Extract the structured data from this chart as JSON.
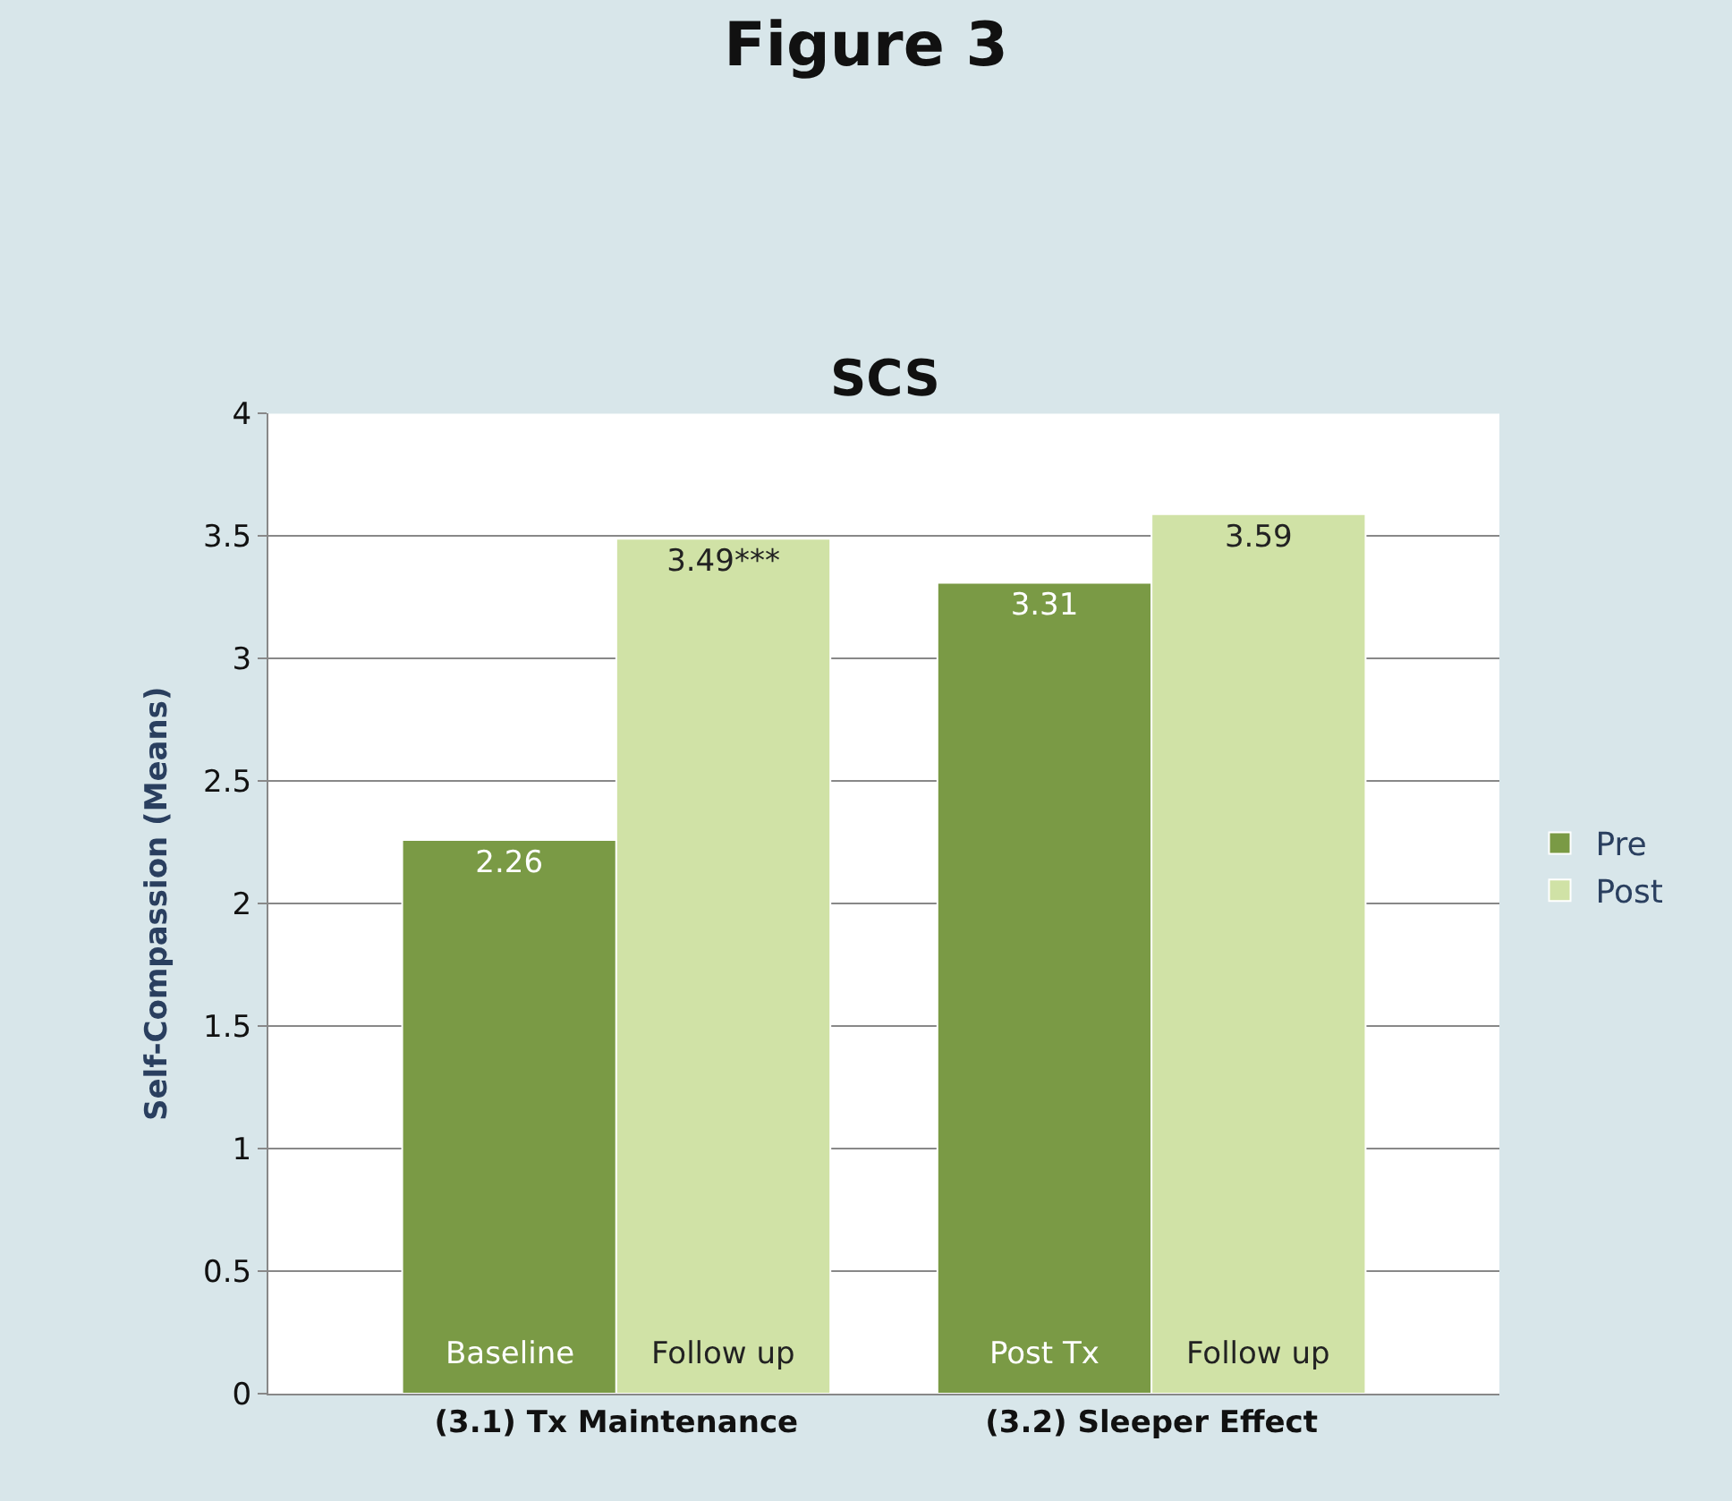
{
  "chart_data": {
    "type": "bar",
    "title": "Figure 3",
    "subtitle": "SCS",
    "ylabel": "Self-Compassion (Means)",
    "categories": [
      "(3.1) Tx Maintenance",
      "(3.2) Sleeper Effect"
    ],
    "series": [
      {
        "name": "Pre",
        "color": "#7a9a45",
        "values": [
          2.26,
          3.31
        ],
        "value_labels": [
          "2.26",
          "3.31"
        ]
      },
      {
        "name": "Post",
        "color": "#d0e2a6",
        "values": [
          3.49,
          3.59
        ],
        "value_labels": [
          "3.49***",
          "3.59"
        ]
      }
    ],
    "annotations": [
      "Baseline",
      "Follow up",
      "Post Tx",
      "Follow up"
    ],
    "ylim": [
      0,
      4
    ],
    "yticks": [
      0,
      0.5,
      1,
      1.5,
      2,
      2.5,
      3,
      3.5,
      4
    ],
    "grid": "y",
    "legend": "right"
  }
}
